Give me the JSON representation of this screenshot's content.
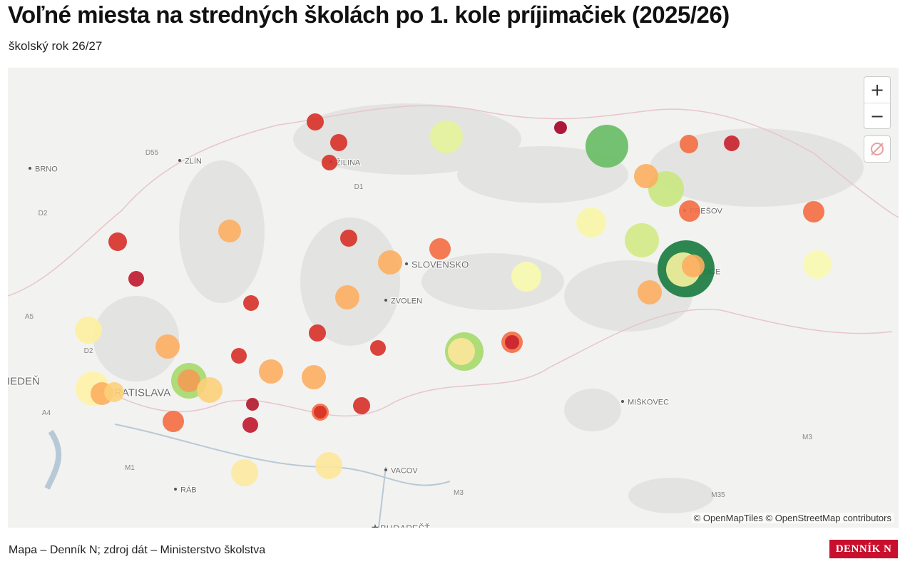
{
  "header": {
    "title": "Voľné miesta na stredných školách po 1. kole príjimačiek (2025/26)",
    "subtitle": "školský rok 26/27"
  },
  "map": {
    "labels": [
      "BRNO",
      "ZLÍN",
      "ŽILINA",
      "PREŠOV",
      "SLOVENSKO",
      "ZVOLEN",
      "KOŠICE",
      "VIEDEŇ",
      "BRATISLAVA",
      "MIŠKOVEC",
      "VACOV",
      "RÁB",
      "BUDAPEŠŤ"
    ],
    "roads": [
      "D55",
      "D1",
      "D2",
      "A5",
      "D2",
      "A4",
      "M1",
      "M3",
      "M3",
      "M35"
    ],
    "zoom_in": "+",
    "zoom_out": "−",
    "attribution": "© OpenMapTiles © OpenStreetMap contributors"
  },
  "footer": {
    "source": "Mapa – Denník N; zdroj dát – Ministerstvo školstva",
    "logo": "DENNÍK N"
  }
}
